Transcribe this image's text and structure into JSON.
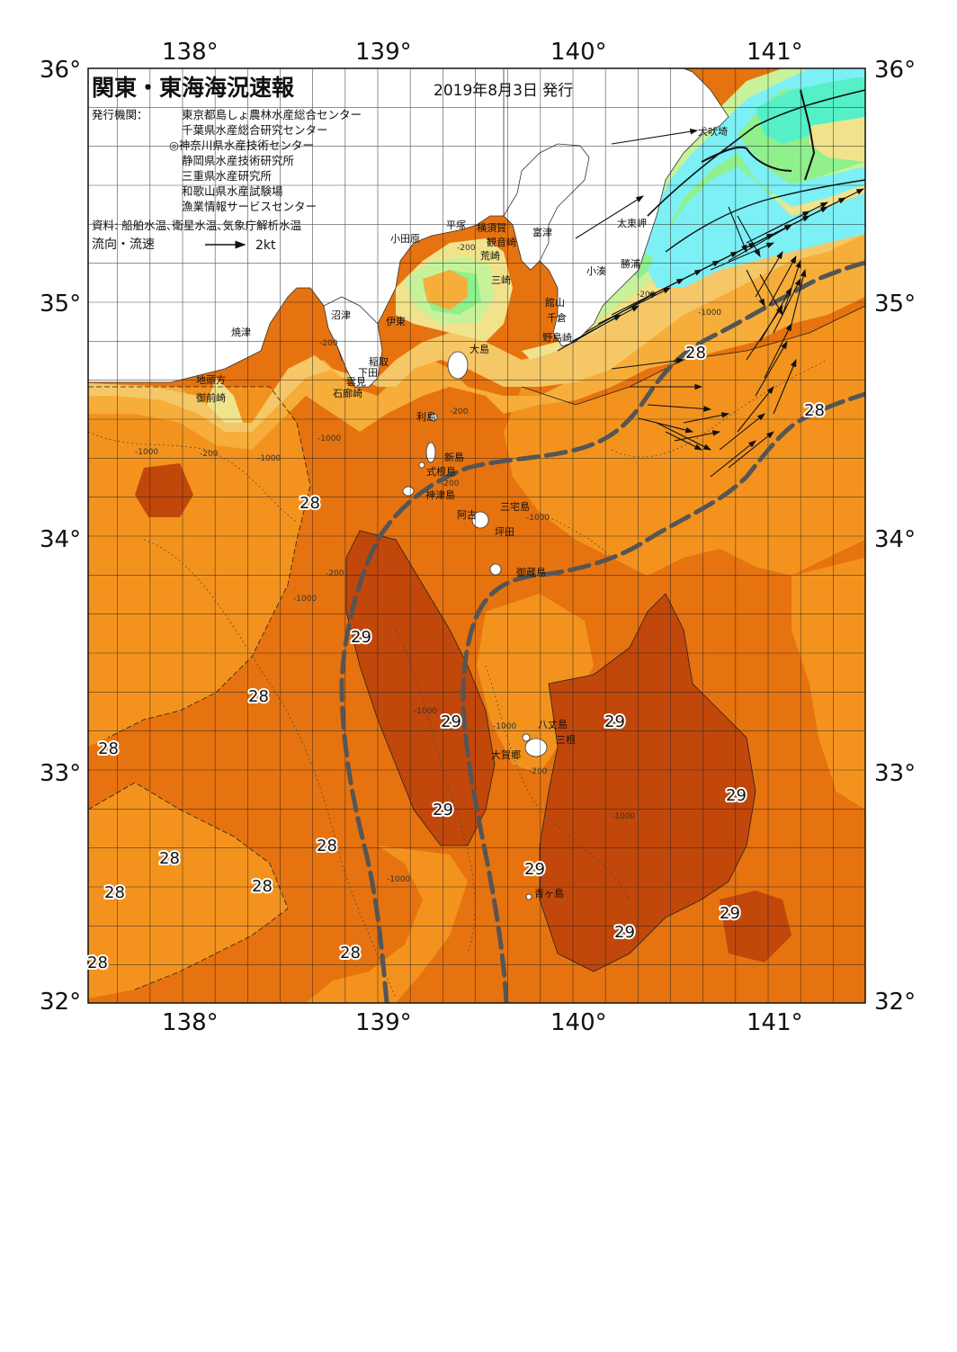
{
  "title": "関東・東海海況速報",
  "issued": "2019年8月3日 発行",
  "issuers_label": "発行機関：",
  "issuers": [
    "東京都島しょ農林水産総合センター",
    "千葉県水産総合研究センター",
    "◎神奈川県水産技術センター",
    "静岡県水産技術研究所",
    "三重県水産研究所",
    "和歌山県水産試験場",
    "漁業情報サービスセンター"
  ],
  "sources": "資料: 船舶水温､衛星水温､気象庁解析水温",
  "legend": {
    "label": "流向・流速",
    "unit": "2kt"
  },
  "axes": {
    "lon_ticks": [
      "138°",
      "139°",
      "140°",
      "141°"
    ],
    "lat_ticks": [
      "36°",
      "35°",
      "34°",
      "33°",
      "32°"
    ]
  },
  "temperature_labels": [
    "28",
    "28",
    "28",
    "29",
    "28",
    "29",
    "29",
    "29",
    "28",
    "28",
    "29",
    "29",
    "28",
    "28",
    "28",
    "28",
    "29",
    "28",
    "29",
    "29",
    "29"
  ],
  "place_names": [
    "犬吠埼",
    "太東岬",
    "勝浦",
    "小湊",
    "富津",
    "館山",
    "千倉",
    "野島崎",
    "横須賀",
    "観音崎",
    "荒崎",
    "三崎",
    "平塚",
    "小田原",
    "大島",
    "利島",
    "新島",
    "式根島",
    "神津島",
    "三宅島",
    "阿古",
    "坪田",
    "御蔵島",
    "八丈島",
    "三根",
    "大賀郷",
    "青ヶ島",
    "沼津",
    "焼津",
    "伊東",
    "稲取",
    "下田",
    "雲見",
    "石廊崎",
    "地頭方",
    "御前崎"
  ],
  "contour_labels": [
    "-1000",
    "-200",
    "-1000",
    "-200",
    "-1000",
    "-200",
    "-1000",
    "-1000",
    "-200",
    "-1000",
    "-200",
    "-1000",
    "-1000",
    "-200",
    "-1000",
    "-200",
    "-1000",
    "-200"
  ],
  "colors": {
    "warm_29": "#c2470a",
    "warm_28": "#e6730f",
    "warm_27": "#f3931e",
    "mid_26": "#f7ad3a",
    "mid_25": "#f5c766",
    "cool_24": "#f0e38c",
    "cool_23": "#c8f29a",
    "cool_22": "#8ff08c",
    "cold_21": "#55f0c8",
    "cold_20": "#7cf0f5",
    "land": "#ffffff",
    "kuroshio_path": "#555555"
  }
}
